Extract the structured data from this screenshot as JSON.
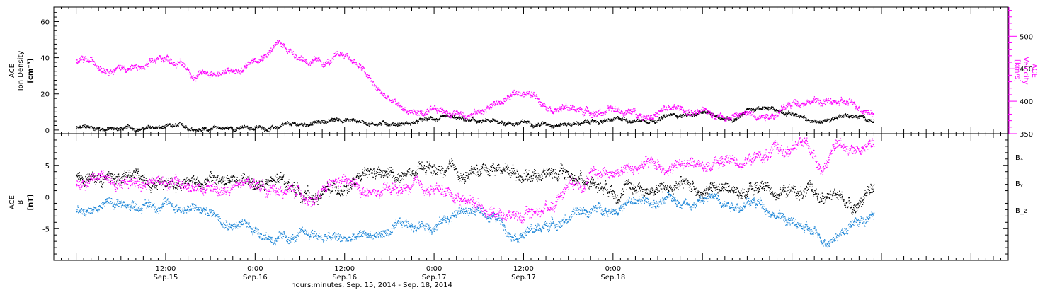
{
  "chart_data": [
    {
      "type": "scatter",
      "panel": "top",
      "y_left_label": [
        "ACE",
        "Ion Density",
        "[cm⁻³]"
      ],
      "y_right_label": [
        "ACE",
        "Velocity",
        "[km/s]"
      ],
      "y_left_range": [
        -2,
        68
      ],
      "y_left_ticks": [
        "0",
        "20",
        "40",
        "60"
      ],
      "y_left_tick_values": [
        0,
        20,
        40,
        60
      ],
      "y_right_range": [
        350,
        545
      ],
      "y_right_ticks": [
        "350",
        "400",
        "450",
        "500"
      ],
      "y_right_tick_values": [
        350,
        400,
        450,
        500
      ],
      "series": [
        {
          "name": "Ion Density",
          "axis": "left",
          "color": "#000000",
          "x_hours": [
            0,
            6,
            12,
            18,
            24,
            30,
            32,
            36,
            40,
            45,
            48,
            54,
            60,
            64,
            68,
            72,
            76,
            80,
            84,
            88,
            90,
            96,
            98,
            100,
            103,
            106,
            107
          ],
          "values": [
            1,
            0.8,
            1,
            1,
            1,
            2,
            4,
            6,
            4,
            4,
            6,
            4,
            4,
            4,
            4,
            5,
            6,
            8,
            9,
            6,
            12,
            10,
            5,
            4,
            9,
            6,
            5
          ],
          "noise": 1.5
        },
        {
          "name": "Velocity",
          "axis": "right",
          "color": "#ff00ff",
          "x_hours": [
            0,
            3,
            6,
            9,
            12,
            14,
            16,
            18,
            20,
            22,
            24,
            27,
            30,
            33,
            36,
            38,
            40,
            42,
            44,
            48,
            54,
            60,
            64,
            68,
            72,
            76,
            80,
            84,
            88,
            90,
            94,
            98,
            100,
            103,
            106,
            107
          ],
          "values": [
            460,
            455,
            455,
            450,
            465,
            460,
            440,
            445,
            445,
            445,
            470,
            490,
            470,
            455,
            470,
            455,
            420,
            400,
            385,
            380,
            385,
            415,
            395,
            385,
            385,
            380,
            388,
            380,
            380,
            380,
            385,
            405,
            400,
            395,
            390,
            385
          ],
          "noise": 7
        }
      ]
    },
    {
      "type": "scatter",
      "panel": "bottom",
      "y_label": [
        "ACE",
        "B",
        "[nT]"
      ],
      "y_range": [
        -10,
        10
      ],
      "y_ticks": [
        "-5",
        "0",
        "5"
      ],
      "y_tick_values": [
        -5,
        0,
        5
      ],
      "zero_line": true,
      "series": [
        {
          "name": "Bₓ",
          "color": "#000000",
          "x_hours": [
            0,
            4,
            8,
            12,
            16,
            20,
            24,
            28,
            32,
            36,
            40,
            44,
            48,
            52,
            56,
            60,
            64,
            68,
            72,
            76,
            80,
            84,
            88,
            92,
            96,
            100,
            104,
            107
          ],
          "values": [
            3,
            3,
            3,
            3,
            3,
            2.5,
            2,
            2,
            0,
            2,
            3,
            3,
            4,
            3,
            5,
            4,
            4,
            3,
            2,
            1.5,
            1.5,
            1.5,
            1,
            1.5,
            1,
            0,
            -1,
            1
          ],
          "noise": 1.3
        },
        {
          "name": "Bᵧ",
          "color": "#1e87d8",
          "x_hours": [
            0,
            4,
            8,
            12,
            16,
            20,
            24,
            28,
            32,
            36,
            40,
            44,
            48,
            52,
            56,
            58,
            62,
            66,
            70,
            74,
            78,
            82,
            86,
            90,
            92,
            96,
            100,
            104,
            107
          ],
          "values": [
            -2,
            -1,
            -1,
            -1,
            -2,
            -3,
            -5,
            -7,
            -6,
            -7,
            -6,
            -5,
            -4,
            -2,
            -3,
            -5,
            -5,
            -3,
            -2,
            -1,
            -1,
            -0.5,
            0,
            -1,
            -1,
            -4,
            -7,
            -4,
            -3
          ],
          "noise": 1
        },
        {
          "name": "B_z",
          "color": "#ff00ff",
          "x_hours": [
            0,
            4,
            8,
            12,
            16,
            20,
            24,
            28,
            32,
            36,
            40,
            44,
            48,
            52,
            56,
            60,
            64,
            66,
            70,
            74,
            78,
            82,
            86,
            90,
            94,
            98,
            100,
            102,
            104,
            107
          ],
          "values": [
            2,
            3,
            3,
            3,
            1,
            1,
            2,
            1,
            0,
            2,
            0,
            1,
            1,
            0,
            -2,
            -3,
            -1,
            3,
            4,
            4.5,
            5,
            5,
            5.5,
            6,
            7,
            8,
            5,
            8,
            8,
            8
          ],
          "noise": 1.2
        }
      ],
      "legend": [
        "Bₓ",
        "Bᵧ",
        "B_z"
      ]
    }
  ],
  "x_axis": {
    "range_hours": [
      -3,
      125
    ],
    "major_ticks": [
      {
        "time": "12:00",
        "date": "Sep.15",
        "hours": 12
      },
      {
        "time": "0:00",
        "date": "Sep.16",
        "hours": 24
      },
      {
        "time": "12:00",
        "date": "Sep.16",
        "hours": 36
      },
      {
        "time": "0:00",
        "date": "Sep.17",
        "hours": 48
      },
      {
        "time": "12:00",
        "date": "Sep.17",
        "hours": 60
      },
      {
        "time": "0:00",
        "date": "Sep.18",
        "hours": 72
      }
    ],
    "title": "hours:minutes, Sep. 15, 2014 - Sep. 18, 2014"
  }
}
